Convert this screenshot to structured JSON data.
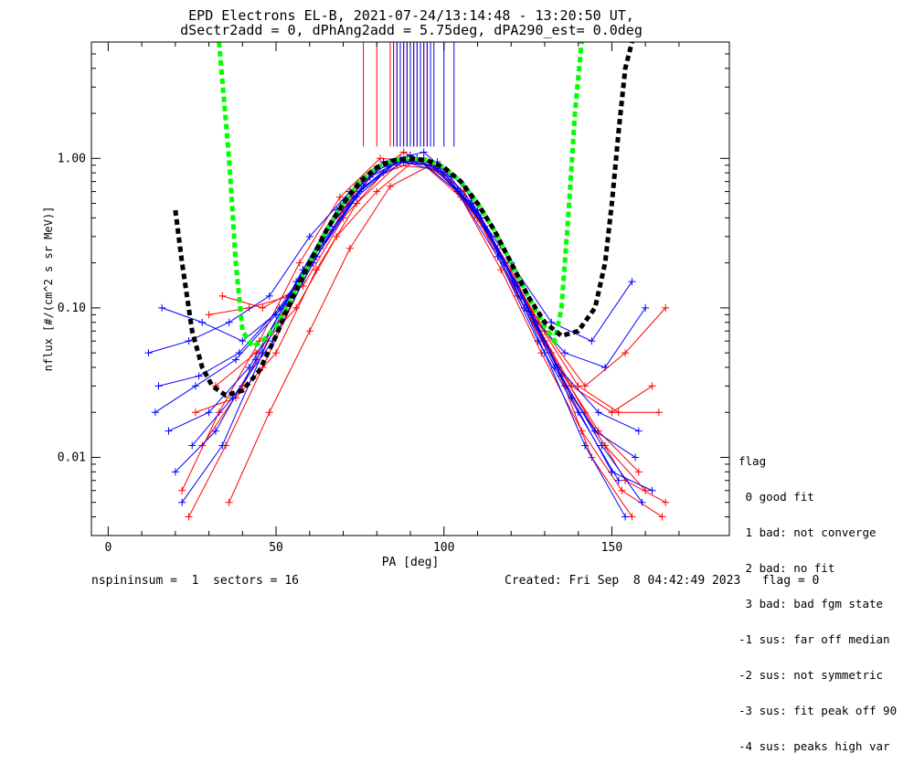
{
  "header": {
    "title_line1": "EPD Electrons EL-B, 2021-07-24/13:14:48 - 13:20:50 UT,",
    "title_line2": "dSectr2add = 0, dPhAng2add = 5.75deg, dPA290_est=   0.0deg"
  },
  "footer": {
    "left": "nspininsum =  1  sectors = 16",
    "right": "Created: Fri Sep  8 04:42:49 2023   flag = 0"
  },
  "legend": {
    "title": "flag",
    "items": [
      " 0 good fit",
      " 1 bad: not converge",
      " 2 bad: no fit",
      " 3 bad: bad fgm state",
      "-1 sus: far off median",
      "-2 sus: not symmetric",
      "-3 sus: fit peak off 90",
      "-4 sus: peaks high var"
    ]
  },
  "chart_data": {
    "type": "line",
    "xlabel": "PA [deg]",
    "ylabel": "nflux [#/(cm^2 s sr MeV)]",
    "xlim": [
      -5,
      185
    ],
    "ylim": [
      0.003,
      6.0
    ],
    "yscale": "log",
    "xticks": [
      0,
      50,
      100,
      150
    ],
    "yticks": [
      {
        "value": 0.01,
        "label": "0.01"
      },
      {
        "value": 0.1,
        "label": "0.10"
      },
      {
        "value": 1.0,
        "label": "1.00"
      }
    ],
    "colors": {
      "series_a": "#ff0000",
      "series_b": "#0000ff",
      "fit_green": "#00ff00",
      "fit_black": "#000000"
    },
    "series": [
      {
        "color": "red",
        "x": [
          24,
          35,
          46,
          58,
          70,
          82,
          94,
          106,
          118,
          130,
          142,
          154,
          166
        ],
        "y": [
          0.004,
          0.012,
          0.04,
          0.15,
          0.45,
          0.95,
          1.0,
          0.6,
          0.2,
          0.06,
          0.02,
          0.007,
          0.005
        ]
      },
      {
        "color": "red",
        "x": [
          22,
          33,
          45,
          57,
          69,
          81,
          93,
          105,
          117,
          129,
          141,
          153,
          165
        ],
        "y": [
          0.006,
          0.02,
          0.06,
          0.2,
          0.55,
          1.0,
          0.95,
          0.55,
          0.18,
          0.05,
          0.015,
          0.006,
          0.004
        ]
      },
      {
        "color": "red",
        "x": [
          28,
          40,
          52,
          64,
          76,
          88,
          100,
          112,
          124,
          136,
          148,
          160
        ],
        "y": [
          0.012,
          0.03,
          0.09,
          0.3,
          0.7,
          1.1,
          0.8,
          0.35,
          0.1,
          0.03,
          0.012,
          0.006
        ]
      },
      {
        "color": "red",
        "x": [
          30,
          42,
          54,
          66,
          78,
          90,
          102,
          114,
          126,
          138,
          150,
          162
        ],
        "y": [
          0.09,
          0.1,
          0.12,
          0.35,
          0.75,
          1.05,
          0.7,
          0.3,
          0.09,
          0.03,
          0.02,
          0.03
        ]
      },
      {
        "color": "red",
        "x": [
          26,
          38,
          50,
          62,
          74,
          86,
          98,
          110,
          122,
          134,
          146,
          158
        ],
        "y": [
          0.02,
          0.025,
          0.05,
          0.18,
          0.5,
          0.9,
          0.85,
          0.4,
          0.12,
          0.04,
          0.015,
          0.008
        ]
      },
      {
        "color": "red",
        "x": [
          32,
          44,
          56,
          68,
          80,
          92,
          104,
          116,
          128,
          140,
          152,
          164
        ],
        "y": [
          0.03,
          0.05,
          0.1,
          0.3,
          0.6,
          1.0,
          0.6,
          0.25,
          0.08,
          0.03,
          0.02,
          0.02
        ]
      },
      {
        "color": "red",
        "x": [
          34,
          46,
          58,
          70,
          82,
          94,
          106,
          118,
          130,
          142,
          154,
          166
        ],
        "y": [
          0.12,
          0.1,
          0.14,
          0.4,
          0.8,
          1.0,
          0.55,
          0.2,
          0.07,
          0.03,
          0.05,
          0.1
        ]
      },
      {
        "color": "red",
        "x": [
          36,
          48,
          60,
          72,
          84,
          96,
          108,
          120,
          132,
          144,
          156
        ],
        "y": [
          0.005,
          0.02,
          0.07,
          0.25,
          0.65,
          0.9,
          0.5,
          0.18,
          0.05,
          0.01,
          0.004
        ]
      },
      {
        "color": "blue",
        "x": [
          12,
          24,
          36,
          48,
          60,
          72,
          84,
          96,
          108,
          120,
          132,
          144,
          156
        ],
        "y": [
          0.05,
          0.06,
          0.08,
          0.12,
          0.3,
          0.6,
          0.95,
          0.9,
          0.5,
          0.2,
          0.08,
          0.06,
          0.15
        ]
      },
      {
        "color": "blue",
        "x": [
          15,
          27,
          39,
          51,
          63,
          75,
          87,
          99,
          111,
          123,
          135,
          147,
          159
        ],
        "y": [
          0.03,
          0.035,
          0.05,
          0.1,
          0.25,
          0.6,
          1.0,
          0.85,
          0.4,
          0.12,
          0.035,
          0.012,
          0.005
        ]
      },
      {
        "color": "blue",
        "x": [
          18,
          30,
          42,
          54,
          66,
          78,
          90,
          102,
          114,
          126,
          138,
          150,
          162
        ],
        "y": [
          0.015,
          0.02,
          0.04,
          0.12,
          0.35,
          0.75,
          1.05,
          0.75,
          0.3,
          0.09,
          0.025,
          0.008,
          0.006
        ]
      },
      {
        "color": "blue",
        "x": [
          20,
          32,
          44,
          56,
          68,
          80,
          92,
          104,
          116,
          128,
          140,
          152
        ],
        "y": [
          0.008,
          0.015,
          0.045,
          0.15,
          0.45,
          0.85,
          1.0,
          0.6,
          0.22,
          0.06,
          0.02,
          0.007
        ]
      },
      {
        "color": "blue",
        "x": [
          16,
          28,
          40,
          52,
          64,
          76,
          88,
          100,
          112,
          124,
          136,
          148,
          160
        ],
        "y": [
          0.1,
          0.08,
          0.06,
          0.1,
          0.28,
          0.65,
          0.95,
          0.8,
          0.35,
          0.1,
          0.05,
          0.04,
          0.1
        ]
      },
      {
        "color": "blue",
        "x": [
          22,
          34,
          46,
          58,
          70,
          82,
          94,
          106,
          118,
          130,
          142,
          154
        ],
        "y": [
          0.005,
          0.012,
          0.05,
          0.18,
          0.5,
          0.95,
          1.1,
          0.65,
          0.2,
          0.05,
          0.012,
          0.004
        ]
      },
      {
        "color": "blue",
        "x": [
          25,
          37,
          49,
          61,
          73,
          85,
          97,
          109,
          121,
          133,
          145,
          157
        ],
        "y": [
          0.012,
          0.025,
          0.06,
          0.2,
          0.55,
          0.95,
          0.9,
          0.45,
          0.15,
          0.04,
          0.015,
          0.01
        ]
      },
      {
        "color": "blue",
        "x": [
          14,
          26,
          38,
          50,
          62,
          74,
          86,
          98,
          110,
          122,
          134,
          146,
          158
        ],
        "y": [
          0.02,
          0.03,
          0.045,
          0.09,
          0.22,
          0.55,
          0.95,
          0.95,
          0.45,
          0.14,
          0.04,
          0.02,
          0.015
        ]
      }
    ],
    "fits": [
      {
        "color": "green",
        "x": [
          33,
          36,
          38,
          40,
          43,
          46,
          50,
          55,
          60,
          65,
          70,
          75,
          80,
          85,
          90,
          95,
          100,
          105,
          110,
          115,
          120,
          125,
          130,
          133,
          135,
          137,
          139,
          141
        ],
        "y": [
          6.0,
          1.0,
          0.2,
          0.07,
          0.055,
          0.06,
          0.075,
          0.12,
          0.2,
          0.33,
          0.5,
          0.7,
          0.87,
          0.97,
          1.0,
          0.97,
          0.87,
          0.7,
          0.5,
          0.33,
          0.2,
          0.12,
          0.075,
          0.06,
          0.1,
          0.4,
          2.0,
          6.0
        ]
      },
      {
        "color": "black",
        "x": [
          20,
          22,
          25,
          28,
          31,
          35,
          40,
          45,
          50,
          55,
          60,
          65,
          70,
          75,
          80,
          85,
          90,
          95,
          100,
          105,
          110,
          115,
          120,
          125,
          130,
          135,
          140,
          145,
          148,
          150,
          152,
          154,
          156
        ],
        "y": [
          0.45,
          0.2,
          0.07,
          0.04,
          0.03,
          0.026,
          0.028,
          0.038,
          0.065,
          0.12,
          0.2,
          0.33,
          0.5,
          0.7,
          0.87,
          0.97,
          1.0,
          0.97,
          0.87,
          0.7,
          0.5,
          0.33,
          0.2,
          0.12,
          0.08,
          0.065,
          0.07,
          0.1,
          0.2,
          0.5,
          1.5,
          4.0,
          6.0
        ]
      }
    ],
    "spikes": {
      "red": [
        76,
        80,
        84,
        86,
        88,
        89,
        90,
        91,
        92,
        93,
        94,
        95
      ],
      "blue": [
        85,
        86,
        87,
        88,
        89,
        90,
        91,
        92,
        93,
        94,
        95,
        96,
        97,
        100,
        103
      ]
    }
  }
}
